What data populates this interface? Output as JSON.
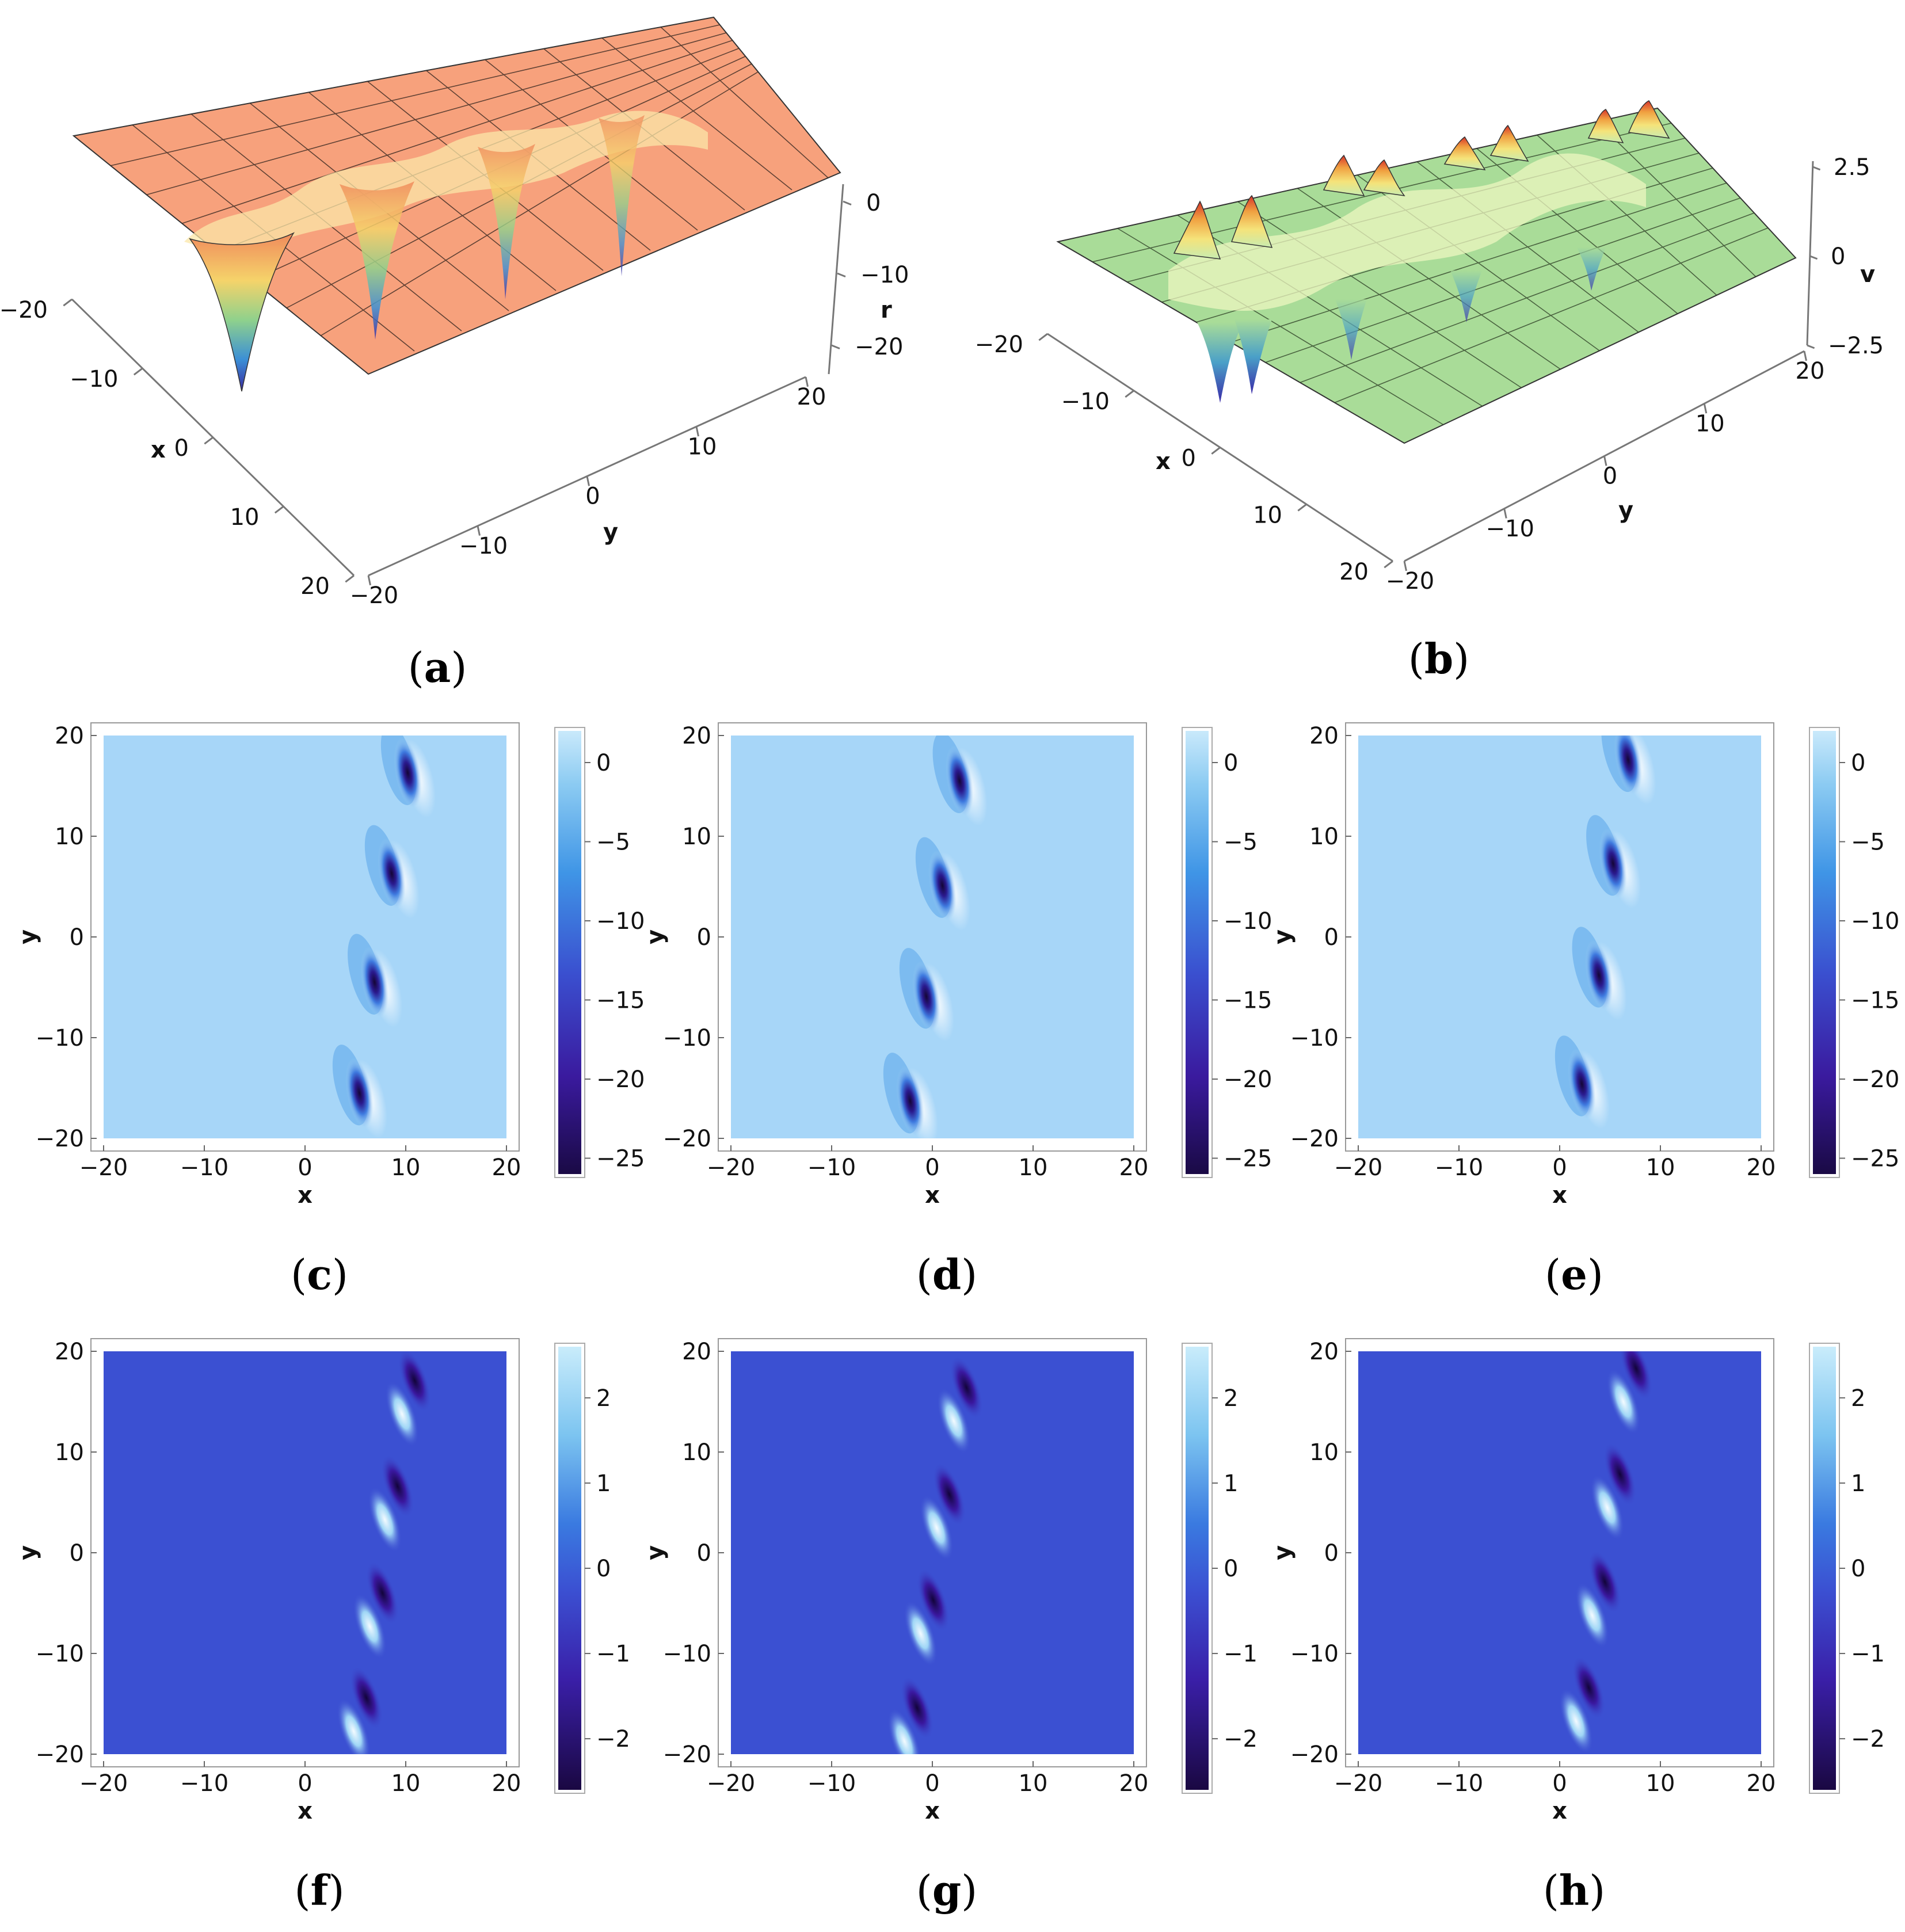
{
  "chart_data": [
    {
      "id": "a",
      "type": "surface3d",
      "caption": "a",
      "xlabel": "x",
      "ylabel": "y",
      "zlabel": "r",
      "xlim": [
        -20,
        20
      ],
      "ylim": [
        -20,
        20
      ],
      "zlim": [
        -25,
        2
      ],
      "x_ticks": [
        "−20",
        "−10",
        "0",
        "10",
        "20"
      ],
      "y_ticks": [
        "−20",
        "−10",
        "0",
        "10",
        "20"
      ],
      "z_ticks": [
        "0",
        "−10",
        "−20"
      ],
      "surface_color": "#f7a17c",
      "features": "four deep wells along a tilted line near x≈5..11"
    },
    {
      "id": "b",
      "type": "surface3d",
      "caption": "b",
      "xlabel": "x",
      "ylabel": "y",
      "zlabel": "v",
      "xlim": [
        -20,
        20
      ],
      "ylim": [
        -20,
        20
      ],
      "zlim": [
        -2.5,
        2.5
      ],
      "x_ticks": [
        "−20",
        "−10",
        "0",
        "10",
        "20"
      ],
      "y_ticks": [
        "−20",
        "−10",
        "0",
        "10",
        "20"
      ],
      "z_ticks": [
        "2.5",
        "0",
        "−2.5"
      ],
      "surface_color": "#a9dc98",
      "features": "paired peaks and troughs along a tilted line"
    },
    {
      "id": "c",
      "type": "heatmap",
      "caption": "c",
      "xlabel": "x",
      "ylabel": "y",
      "xlim": [
        -20,
        20
      ],
      "ylim": [
        -20,
        20
      ],
      "x_ticks": [
        "−20",
        "−10",
        "0",
        "10",
        "20"
      ],
      "y_ticks": [
        "20",
        "10",
        "0",
        "−10",
        "−20"
      ],
      "colorbar_ticks": [
        "0",
        "−5",
        "−10",
        "−15",
        "−20",
        "−25"
      ],
      "colorbar_range": [
        -26,
        2
      ],
      "background_value": 0,
      "wells": [
        {
          "x": 5.4,
          "y": -15.5
        },
        {
          "x": 6.9,
          "y": -4.5
        },
        {
          "x": 8.6,
          "y": 6.3
        },
        {
          "x": 10.2,
          "y": 16.3
        }
      ]
    },
    {
      "id": "d",
      "type": "heatmap",
      "caption": "d",
      "xlabel": "x",
      "ylabel": "y",
      "xlim": [
        -20,
        20
      ],
      "ylim": [
        -20,
        20
      ],
      "x_ticks": [
        "−20",
        "−10",
        "0",
        "10",
        "20"
      ],
      "y_ticks": [
        "20",
        "10",
        "0",
        "−10",
        "−20"
      ],
      "colorbar_ticks": [
        "0",
        "−5",
        "−10",
        "−15",
        "−20",
        "−25"
      ],
      "colorbar_range": [
        -26,
        2
      ],
      "background_value": 0,
      "wells": [
        {
          "x": -2.2,
          "y": -16.3
        },
        {
          "x": -0.6,
          "y": -5.9
        },
        {
          "x": 1.0,
          "y": 5.1
        },
        {
          "x": 2.7,
          "y": 15.5
        }
      ]
    },
    {
      "id": "e",
      "type": "heatmap",
      "caption": "e",
      "xlabel": "x",
      "ylabel": "y",
      "xlim": [
        -20,
        20
      ],
      "ylim": [
        -20,
        20
      ],
      "x_ticks": [
        "−20",
        "−10",
        "0",
        "10",
        "20"
      ],
      "y_ticks": [
        "20",
        "10",
        "0",
        "−10",
        "−20"
      ],
      "colorbar_ticks": [
        "0",
        "−5",
        "−10",
        "−15",
        "−20",
        "−25"
      ],
      "colorbar_range": [
        -26,
        2
      ],
      "background_value": 0,
      "wells": [
        {
          "x": 2.2,
          "y": -14.6
        },
        {
          "x": 3.9,
          "y": -3.8
        },
        {
          "x": 5.3,
          "y": 7.3
        },
        {
          "x": 6.8,
          "y": 17.6
        }
      ]
    },
    {
      "id": "f",
      "type": "heatmap",
      "caption": "f",
      "xlabel": "x",
      "ylabel": "y",
      "xlim": [
        -20,
        20
      ],
      "ylim": [
        -20,
        20
      ],
      "x_ticks": [
        "−20",
        "−10",
        "0",
        "10",
        "20"
      ],
      "y_ticks": [
        "20",
        "10",
        "0",
        "−10",
        "−20"
      ],
      "colorbar_ticks": [
        "2",
        "1",
        "0",
        "−1",
        "−2"
      ],
      "colorbar_range": [
        -2.6,
        2.6
      ],
      "background_value": 0,
      "dipoles": [
        {
          "x": 5.4,
          "y": -16.0
        },
        {
          "x": 7.0,
          "y": -5.6
        },
        {
          "x": 8.5,
          "y": 5.0
        },
        {
          "x": 10.2,
          "y": 15.5
        }
      ]
    },
    {
      "id": "g",
      "type": "heatmap",
      "caption": "g",
      "xlabel": "x",
      "ylabel": "y",
      "xlim": [
        -20,
        20
      ],
      "ylim": [
        -20,
        20
      ],
      "x_ticks": [
        "−20",
        "−10",
        "0",
        "10",
        "20"
      ],
      "y_ticks": [
        "20",
        "10",
        "0",
        "−10",
        "−20"
      ],
      "colorbar_ticks": [
        "2",
        "1",
        "0",
        "−1",
        "−2"
      ],
      "colorbar_range": [
        -2.6,
        2.6
      ],
      "background_value": 0,
      "dipoles": [
        {
          "x": -2.2,
          "y": -17.0
        },
        {
          "x": -0.6,
          "y": -6.3
        },
        {
          "x": 1.0,
          "y": 4.2
        },
        {
          "x": 2.7,
          "y": 14.8
        }
      ]
    },
    {
      "id": "h",
      "type": "heatmap",
      "caption": "h",
      "xlabel": "x",
      "ylabel": "y",
      "xlim": [
        -20,
        20
      ],
      "ylim": [
        -20,
        20
      ],
      "x_ticks": [
        "−20",
        "−10",
        "0",
        "10",
        "20"
      ],
      "y_ticks": [
        "20",
        "10",
        "0",
        "−10",
        "−20"
      ],
      "colorbar_ticks": [
        "2",
        "1",
        "0",
        "−1",
        "−2"
      ],
      "colorbar_range": [
        -2.6,
        2.6
      ],
      "background_value": 0,
      "dipoles": [
        {
          "x": 2.2,
          "y": -15.0
        },
        {
          "x": 3.8,
          "y": -4.5
        },
        {
          "x": 5.3,
          "y": 6.2
        },
        {
          "x": 6.9,
          "y": 16.7
        }
      ]
    }
  ]
}
